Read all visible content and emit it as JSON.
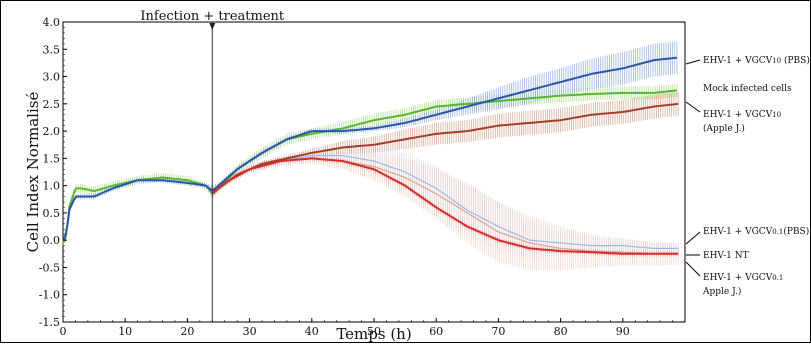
{
  "chart_data": {
    "type": "line",
    "xlabel": "Temps (h)",
    "ylabel": "Cell Index Normalisé",
    "xlim": [
      0,
      100
    ],
    "ylim": [
      -1.5,
      4.0
    ],
    "xticks": [
      0,
      10,
      20,
      30,
      40,
      50,
      60,
      70,
      80,
      90
    ],
    "yticks": [
      -1.5,
      -1.0,
      -0.5,
      0.0,
      0.5,
      1.0,
      1.5,
      2.0,
      2.5,
      3.0,
      3.5,
      4.0
    ],
    "grid": false,
    "event_annotation": {
      "x": 24,
      "label": "Infection + treatment"
    },
    "series": [
      {
        "name": "EHV-1 + VGCV10 (PBS)",
        "label_main": "EHV-1 + VGCV",
        "label_sub": "10",
        "label_suffix": " (PBS)",
        "color": "#2a55a8",
        "band_color": "#6b8fd6",
        "x": [
          0,
          0.5,
          1,
          2,
          3,
          5,
          8,
          12,
          16,
          20,
          23,
          24,
          25,
          28,
          32,
          36,
          40,
          45,
          50,
          55,
          60,
          65,
          70,
          75,
          80,
          85,
          90,
          95,
          99
        ],
        "y": [
          0.0,
          0.1,
          0.55,
          0.8,
          0.8,
          0.8,
          0.95,
          1.1,
          1.1,
          1.05,
          1.0,
          0.9,
          1.0,
          1.3,
          1.6,
          1.85,
          2.0,
          2.0,
          2.05,
          2.15,
          2.3,
          2.45,
          2.6,
          2.75,
          2.9,
          3.05,
          3.15,
          3.3,
          3.35
        ],
        "err": [
          0,
          0.1,
          0.05,
          0.05,
          0.05,
          0.05,
          0.05,
          0.05,
          0.05,
          0.05,
          0.05,
          0.1,
          0.05,
          0.05,
          0.05,
          0.05,
          0.05,
          0.05,
          0.05,
          0.08,
          0.1,
          0.15,
          0.2,
          0.25,
          0.25,
          0.28,
          0.3,
          0.3,
          0.3
        ]
      },
      {
        "name": "Mock infected cells",
        "color": "#55b82d",
        "band_color": "#8fd65a",
        "x": [
          0,
          0.5,
          1,
          2,
          3,
          5,
          8,
          12,
          16,
          20,
          23,
          24,
          25,
          28,
          32,
          36,
          40,
          45,
          50,
          55,
          60,
          65,
          70,
          75,
          80,
          85,
          90,
          95,
          99
        ],
        "y": [
          -0.05,
          0.05,
          0.6,
          0.95,
          0.95,
          0.9,
          1.0,
          1.1,
          1.15,
          1.1,
          1.0,
          0.85,
          0.95,
          1.3,
          1.6,
          1.85,
          1.95,
          2.05,
          2.2,
          2.3,
          2.45,
          2.5,
          2.55,
          2.6,
          2.65,
          2.68,
          2.7,
          2.7,
          2.75
        ],
        "err": [
          0.05,
          0.1,
          0.08,
          0.08,
          0.08,
          0.08,
          0.08,
          0.08,
          0.08,
          0.08,
          0.05,
          0.1,
          0.08,
          0.08,
          0.1,
          0.1,
          0.1,
          0.12,
          0.12,
          0.12,
          0.12,
          0.12,
          0.12,
          0.12,
          0.12,
          0.12,
          0.12,
          0.12,
          0.12
        ]
      },
      {
        "name": "EHV-1 + VGCV10 (Apple J.)",
        "label_main": "EHV-1 + VGCV",
        "label_sub": "10",
        "label_line2": "(Apple J.)",
        "color": "#a0402a",
        "band_color": "#c8876a",
        "x": [
          24,
          25,
          28,
          32,
          36,
          40,
          45,
          50,
          55,
          60,
          65,
          70,
          75,
          80,
          85,
          90,
          95,
          99
        ],
        "y": [
          0.85,
          0.95,
          1.2,
          1.4,
          1.5,
          1.6,
          1.7,
          1.75,
          1.85,
          1.95,
          2.0,
          2.1,
          2.15,
          2.2,
          2.3,
          2.35,
          2.45,
          2.5
        ],
        "err": [
          0.05,
          0.05,
          0.05,
          0.05,
          0.05,
          0.08,
          0.12,
          0.15,
          0.18,
          0.2,
          0.2,
          0.22,
          0.22,
          0.22,
          0.22,
          0.22,
          0.22,
          0.22
        ]
      },
      {
        "name": "EHV-1 + VGCV0.1(PBS)",
        "label_main": "EHV-1 + VGCV",
        "label_sub": "0.1",
        "label_suffix": "(PBS)",
        "color": "#9fb7e6",
        "band_color": "#c8d6f2",
        "x": [
          24,
          26,
          30,
          35,
          40,
          45,
          50,
          55,
          60,
          65,
          70,
          75,
          80,
          85,
          90,
          95,
          99
        ],
        "y": [
          0.85,
          1.05,
          1.3,
          1.45,
          1.55,
          1.55,
          1.45,
          1.25,
          0.95,
          0.55,
          0.25,
          0.0,
          -0.05,
          -0.1,
          -0.1,
          -0.15,
          -0.15
        ],
        "err": [
          0.05,
          0.05,
          0.08,
          0.1,
          0.1,
          0.15,
          0.25,
          0.35,
          0.4,
          0.45,
          0.45,
          0.35,
          0.2,
          0.15,
          0.12,
          0.1,
          0.1
        ]
      },
      {
        "name": "EHV-1 NT",
        "color": "#d42b2b",
        "band_color": "#e98080",
        "x": [
          24,
          26,
          30,
          35,
          40,
          45,
          50,
          55,
          60,
          65,
          70,
          75,
          80,
          85,
          90,
          95,
          99
        ],
        "y": [
          0.85,
          1.05,
          1.3,
          1.45,
          1.5,
          1.45,
          1.3,
          1.0,
          0.6,
          0.25,
          0.0,
          -0.15,
          -0.2,
          -0.22,
          -0.25,
          -0.25,
          -0.25
        ],
        "err": [
          0.05,
          0.05,
          0.05,
          0.05,
          0.05,
          0.05,
          0.05,
          0.05,
          0.05,
          0.05,
          0.05,
          0.05,
          0.05,
          0.05,
          0.05,
          0.05,
          0.05
        ]
      },
      {
        "name": "EHV-1 + VGCV0.1 Apple J.)",
        "label_main": "EHV-1 + VGCV",
        "label_sub": "0.1",
        "label_line2": "Apple J.)",
        "color": "#d9a58f",
        "band_color": "#eac3b3",
        "x": [
          24,
          26,
          30,
          35,
          40,
          45,
          50,
          55,
          60,
          65,
          70,
          75,
          80,
          85,
          90,
          95,
          99
        ],
        "y": [
          0.85,
          1.05,
          1.3,
          1.45,
          1.5,
          1.45,
          1.35,
          1.15,
          0.85,
          0.5,
          0.15,
          -0.05,
          -0.15,
          -0.2,
          -0.22,
          -0.25,
          -0.25
        ],
        "err": [
          0.05,
          0.05,
          0.05,
          0.08,
          0.1,
          0.15,
          0.25,
          0.35,
          0.45,
          0.55,
          0.55,
          0.5,
          0.4,
          0.3,
          0.25,
          0.22,
          0.2
        ]
      }
    ]
  }
}
